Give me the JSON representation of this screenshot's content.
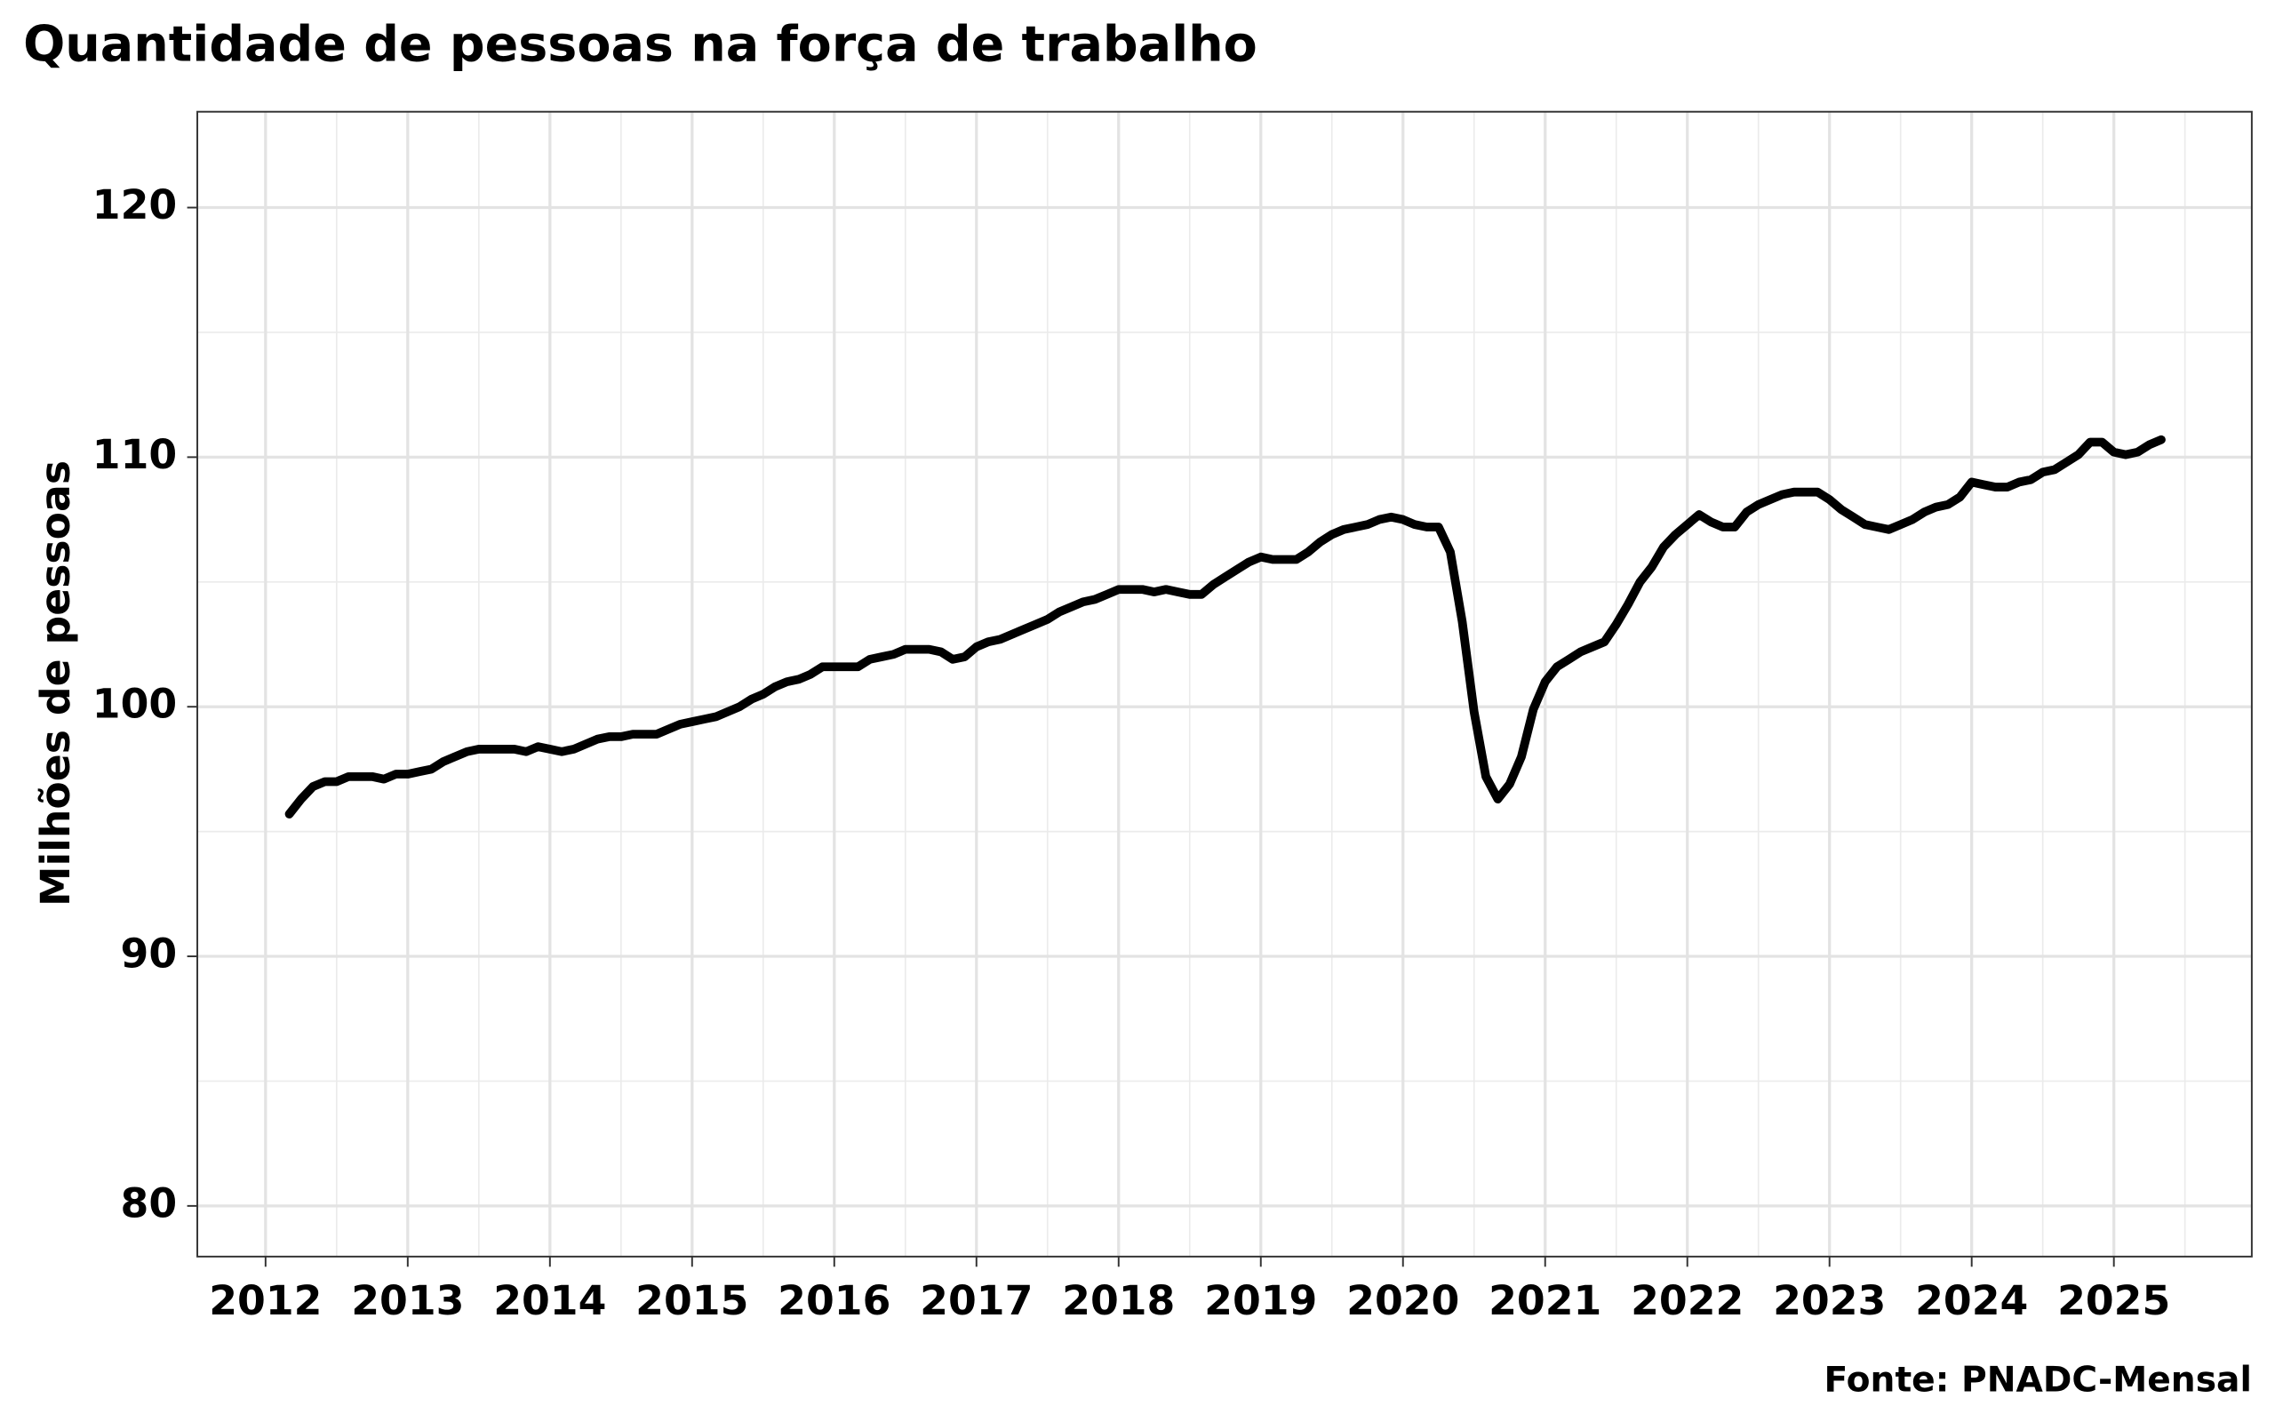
{
  "chart_data": {
    "type": "line",
    "title": "Quantidade de pessoas na força de trabalho",
    "y_label": "Milhões de pessoas",
    "source": "Fonte: PNADC-Mensal",
    "grid": true,
    "xlim": [
      2011.52,
      2025.97
    ],
    "ylim": [
      77.97,
      123.84
    ],
    "xticks": [
      2012,
      2013,
      2014,
      2015,
      2016,
      2017,
      2018,
      2019,
      2020,
      2021,
      2022,
      2023,
      2024,
      2025
    ],
    "yticks": [
      80,
      90,
      100,
      110,
      120
    ],
    "series": [
      {
        "color": "#000000",
        "x": [
          2012.167,
          2012.25,
          2012.333,
          2012.417,
          2012.5,
          2012.583,
          2012.667,
          2012.75,
          2012.833,
          2012.917,
          2013,
          2013.083,
          2013.167,
          2013.25,
          2013.333,
          2013.417,
          2013.5,
          2013.583,
          2013.667,
          2013.75,
          2013.833,
          2013.917,
          2014,
          2014.083,
          2014.167,
          2014.25,
          2014.333,
          2014.417,
          2014.5,
          2014.583,
          2014.667,
          2014.75,
          2014.833,
          2014.917,
          2015,
          2015.083,
          2015.167,
          2015.25,
          2015.333,
          2015.417,
          2015.5,
          2015.583,
          2015.667,
          2015.75,
          2015.833,
          2015.917,
          2016,
          2016.083,
          2016.167,
          2016.25,
          2016.333,
          2016.417,
          2016.5,
          2016.583,
          2016.667,
          2016.75,
          2016.833,
          2016.917,
          2017,
          2017.083,
          2017.167,
          2017.25,
          2017.333,
          2017.417,
          2017.5,
          2017.583,
          2017.667,
          2017.75,
          2017.833,
          2017.917,
          2018,
          2018.083,
          2018.167,
          2018.25,
          2018.333,
          2018.417,
          2018.5,
          2018.583,
          2018.667,
          2018.75,
          2018.833,
          2018.917,
          2019,
          2019.083,
          2019.167,
          2019.25,
          2019.333,
          2019.417,
          2019.5,
          2019.583,
          2019.667,
          2019.75,
          2019.833,
          2019.917,
          2020,
          2020.083,
          2020.167,
          2020.25,
          2020.333,
          2020.417,
          2020.5,
          2020.583,
          2020.667,
          2020.75,
          2020.833,
          2020.917,
          2021,
          2021.083,
          2021.167,
          2021.25,
          2021.333,
          2021.417,
          2021.5,
          2021.583,
          2021.667,
          2021.75,
          2021.833,
          2021.917,
          2022,
          2022.083,
          2022.167,
          2022.25,
          2022.333,
          2022.417,
          2022.5,
          2022.583,
          2022.667,
          2022.75,
          2022.833,
          2022.917,
          2023,
          2023.083,
          2023.167,
          2023.25,
          2023.333,
          2023.417,
          2023.5,
          2023.583,
          2023.667,
          2023.75,
          2023.833,
          2023.917,
          2024,
          2024.083,
          2024.167,
          2024.25,
          2024.333,
          2024.417,
          2024.5,
          2024.583,
          2024.667,
          2024.75,
          2024.833,
          2024.917,
          2025,
          2025.083,
          2025.167,
          2025.25,
          2025.333
        ],
        "values": [
          95.7,
          96.3,
          96.8,
          97.0,
          97.0,
          97.2,
          97.2,
          97.2,
          97.1,
          97.3,
          97.3,
          97.4,
          97.5,
          97.8,
          98.0,
          98.2,
          98.3,
          98.3,
          98.3,
          98.3,
          98.2,
          98.4,
          98.3,
          98.2,
          98.3,
          98.5,
          98.7,
          98.8,
          98.8,
          98.9,
          98.9,
          98.9,
          99.1,
          99.3,
          99.4,
          99.5,
          99.6,
          99.8,
          100.0,
          100.3,
          100.5,
          100.8,
          101.0,
          101.1,
          101.3,
          101.6,
          101.6,
          101.6,
          101.6,
          101.9,
          102.0,
          102.1,
          102.3,
          102.3,
          102.3,
          102.2,
          101.9,
          102.0,
          102.4,
          102.6,
          102.7,
          102.9,
          103.1,
          103.3,
          103.5,
          103.8,
          104.0,
          104.2,
          104.3,
          104.5,
          104.7,
          104.7,
          104.7,
          104.6,
          104.7,
          104.6,
          104.5,
          104.5,
          104.9,
          105.2,
          105.5,
          105.8,
          106.0,
          105.9,
          105.9,
          105.9,
          106.2,
          106.6,
          106.9,
          107.1,
          107.2,
          107.3,
          107.5,
          107.6,
          107.5,
          107.3,
          107.2,
          107.2,
          106.2,
          103.4,
          99.8,
          97.2,
          96.3,
          96.9,
          98.0,
          99.9,
          101.0,
          101.6,
          101.9,
          102.2,
          102.4,
          102.6,
          103.3,
          104.1,
          105.0,
          105.6,
          106.4,
          106.9,
          107.3,
          107.7,
          107.4,
          107.2,
          107.2,
          107.8,
          108.1,
          108.3,
          108.5,
          108.6,
          108.6,
          108.6,
          108.3,
          107.9,
          107.6,
          107.3,
          107.2,
          107.1,
          107.3,
          107.5,
          107.8,
          108.0,
          108.1,
          108.4,
          109.0,
          108.9,
          108.8,
          108.8,
          109.0,
          109.1,
          109.4,
          109.5,
          109.8,
          110.1,
          110.6,
          110.6,
          110.2,
          110.1,
          110.2,
          110.5,
          110.7
        ]
      }
    ]
  }
}
